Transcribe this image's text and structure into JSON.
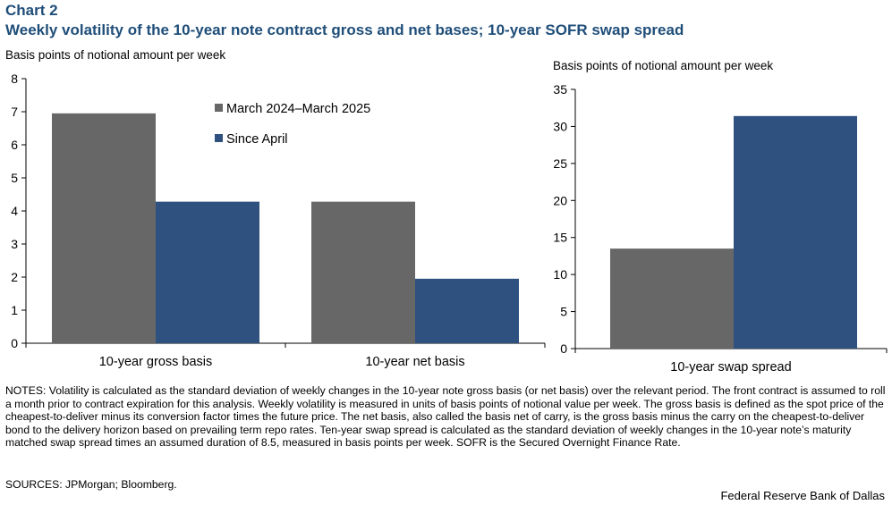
{
  "header": {
    "label": "Chart 2",
    "title": "Weekly volatility of the 10-year note contract gross and net bases; 10-year SOFR swap spread"
  },
  "colors": {
    "series1": "#676767",
    "series2": "#2e5180",
    "title": "#1f4e79"
  },
  "chart_data": [
    {
      "type": "bar",
      "ylabel": "Basis points of notional amount per week",
      "categories": [
        "10-year gross basis",
        "10-year net basis"
      ],
      "series": [
        {
          "name": "March 2024–March 2025",
          "values": [
            6.95,
            4.28
          ]
        },
        {
          "name": "Since April",
          "values": [
            4.28,
            1.95
          ]
        }
      ],
      "ylim": [
        0,
        8
      ],
      "yticks": [
        "0",
        "1",
        "2",
        "3",
        "4",
        "5",
        "6",
        "7",
        "8"
      ],
      "legend_position": "top-center"
    },
    {
      "type": "bar",
      "ylabel": "Basis points of notional amount per week",
      "categories": [
        "10-year swap spread"
      ],
      "series": [
        {
          "name": "March 2024–March 2025",
          "values": [
            13.5
          ]
        },
        {
          "name": "Since April",
          "values": [
            31.4
          ]
        }
      ],
      "ylim": [
        0,
        35
      ],
      "yticks": [
        "0",
        "5",
        "10",
        "15",
        "20",
        "25",
        "30",
        "35"
      ]
    }
  ],
  "notes": "NOTES: Volatility is calculated as the standard deviation of weekly changes in the 10-year note gross basis (or net basis) over the relevant period. The front contract is assumed to roll a month prior to contract expiration for this analysis. Weekly volatility is measured in units of basis points of notional value per week. The gross basis is defined as the spot price of the cheapest-to-deliver minus its conversion factor times the future price. The net basis, also called the basis net of carry, is the gross basis minus the carry on the cheapest-to-deliver bond to the delivery horizon based on prevailing term repo rates. Ten-year swap spread is calculated as the standard deviation of weekly changes in the 10-year note’s maturity matched swap spread times an assumed duration of 8.5, measured in basis points per week. SOFR is the Secured Overnight Finance Rate.",
  "sources": "SOURCES: JPMorgan;  Bloomberg.",
  "footer": "Federal Reserve Bank of Dallas"
}
